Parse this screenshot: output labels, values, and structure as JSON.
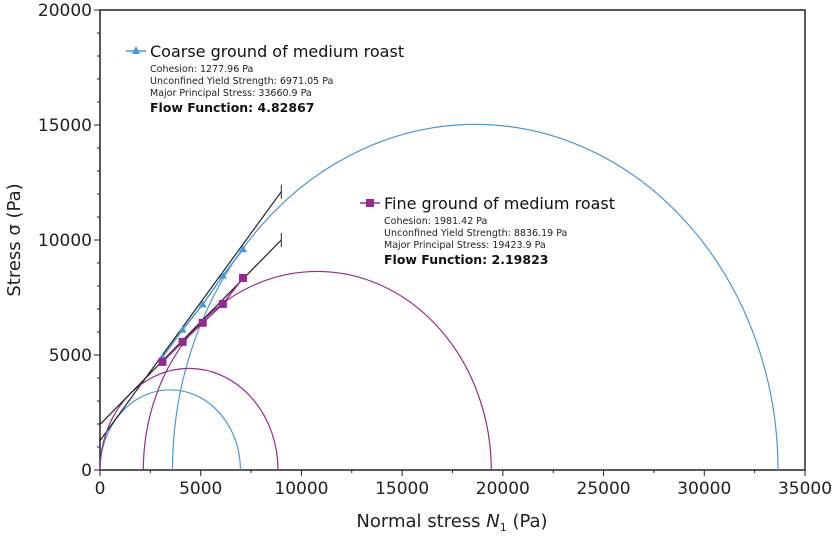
{
  "chart_data": {
    "type": "scatter",
    "xlabel": "Normal stress N1 (Pa)",
    "xlabel_main": "Normal stress ",
    "xlabel_var": "N",
    "xlabel_sub": "1",
    "xlabel_unit": " (Pa)",
    "ylabel": "Stress σ (Pa)",
    "xlim": [
      0,
      35000
    ],
    "ylim": [
      0,
      20000
    ],
    "xticks": [
      0,
      5000,
      10000,
      15000,
      20000,
      25000,
      30000,
      35000
    ],
    "yticks": [
      0,
      5000,
      10000,
      15000,
      20000
    ],
    "series": [
      {
        "name": "Coarse ground of medium roast",
        "color": "#4a97d8",
        "marker": "triangle",
        "x": [
          3100,
          4100,
          5100,
          6100,
          7100
        ],
        "y": [
          4900,
          6100,
          7200,
          8450,
          9600
        ],
        "cohesion": "Cohesion: 1277.96 Pa",
        "ucys": "Unconfined Yield Strength: 6971.05 Pa",
        "mps": "Major Principal Stress: 33660.9 Pa",
        "ff": "Flow Function: 4.82867",
        "yield_line": {
          "x": [
            0,
            9000
          ],
          "y": [
            1278,
            12100
          ]
        },
        "circles": [
          {
            "center": 3486,
            "radius": 3486
          },
          {
            "center": 18630,
            "radius": 15031
          }
        ]
      },
      {
        "name": "Fine ground of medium roast",
        "color": "#962a8e",
        "marker": "square",
        "x": [
          3100,
          4100,
          5100,
          6100,
          7100
        ],
        "y": [
          4700,
          5570,
          6400,
          7220,
          8350
        ],
        "cohesion": "Cohesion: 1981.42 Pa",
        "ucys": "Unconfined Yield Strength: 8836.19 Pa",
        "mps": "Major Principal Stress: 19423.9 Pa",
        "ff": "Flow Function: 2.19823",
        "yield_line": {
          "x": [
            0,
            9000
          ],
          "y": [
            1981,
            10000
          ]
        },
        "circles": [
          {
            "center": 4418,
            "radius": 4418
          },
          {
            "center": 10787,
            "radius": 8637
          }
        ]
      }
    ]
  }
}
